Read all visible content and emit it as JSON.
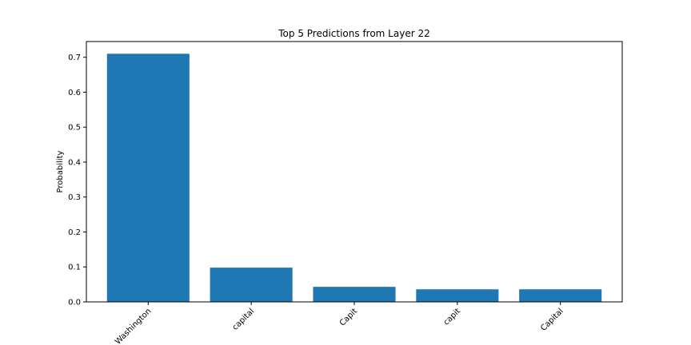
{
  "chart_data": {
    "type": "bar",
    "title": "Top 5 Predictions from Layer 22",
    "xlabel": "",
    "ylabel": "Probability",
    "categories": [
      "Washington",
      "capital",
      "Capit",
      "capit",
      "Capital"
    ],
    "values": [
      0.71,
      0.098,
      0.043,
      0.036,
      0.036
    ],
    "ylim": [
      0,
      0.745
    ],
    "yticks": [
      "0.0",
      "0.1",
      "0.2",
      "0.3",
      "0.4",
      "0.5",
      "0.6",
      "0.7"
    ],
    "bar_color": "#1f77b4",
    "grid": false,
    "legend": "none"
  }
}
